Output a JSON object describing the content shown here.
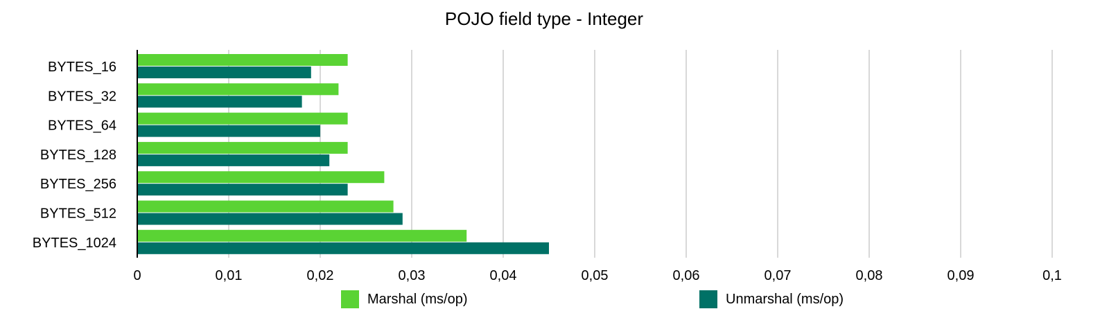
{
  "chart_data": {
    "type": "bar",
    "orientation": "horizontal",
    "title": "POJO field type - Integer",
    "xlabel": "",
    "ylabel": "",
    "categories": [
      "BYTES_16",
      "BYTES_32",
      "BYTES_64",
      "BYTES_128",
      "BYTES_256",
      "BYTES_512",
      "BYTES_1024"
    ],
    "series": [
      {
        "name": "Marshal (ms/op)",
        "color": "#5ad334",
        "values": [
          0.023,
          0.022,
          0.023,
          0.023,
          0.027,
          0.028,
          0.036
        ]
      },
      {
        "name": "Unmarshal (ms/op)",
        "color": "#007166",
        "values": [
          0.019,
          0.018,
          0.02,
          0.021,
          0.023,
          0.029,
          0.045
        ]
      }
    ],
    "xlim": [
      0,
      0.1
    ],
    "xticks": [
      "0",
      "0,01",
      "0,02",
      "0,03",
      "0,04",
      "0,05",
      "0,06",
      "0,07",
      "0,08",
      "0,09",
      "0,1"
    ],
    "grid": true,
    "legend": "bottom"
  }
}
